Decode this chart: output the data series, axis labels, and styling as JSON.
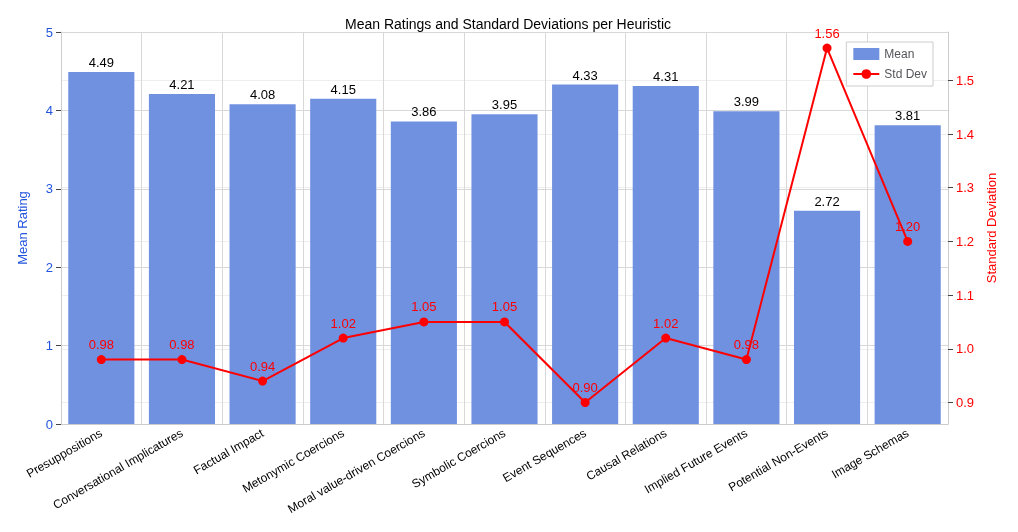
{
  "chart_data": {
    "type": "bar",
    "title": "Mean Ratings and Standard Deviations per Heuristic",
    "ylabel": "Mean Rating",
    "y2label": "Standard Deviation",
    "categories": [
      "Presuppositions",
      "Conversational Implicatures",
      "Factual Impact",
      "Metonymic Coercions",
      "Moral value-driven Coercions",
      "Symbolic Coercions",
      "Event Sequences",
      "Causal Relations",
      "Implied Future Events",
      "Potential Non-Events",
      "Image Schemas"
    ],
    "series": [
      {
        "name": "Mean",
        "color": "#7090e0",
        "values": [
          4.49,
          4.21,
          4.08,
          4.15,
          3.86,
          3.95,
          4.33,
          4.31,
          3.99,
          2.72,
          3.81
        ],
        "value_labels": [
          "4.49",
          "4.21",
          "4.08",
          "4.15",
          "3.86",
          "3.95",
          "4.33",
          "4.31",
          "3.99",
          "2.72",
          "3.81"
        ]
      },
      {
        "name": "Std Dev",
        "type": "line",
        "axis": "y2",
        "color": "#ff0000",
        "marker": "circle",
        "values": [
          0.98,
          0.98,
          0.94,
          1.02,
          1.05,
          1.05,
          0.9,
          1.02,
          0.98,
          1.56,
          1.2
        ],
        "value_labels": [
          "0.98",
          "0.98",
          "0.94",
          "1.02",
          "1.05",
          "1.05",
          "0.90",
          "1.02",
          "0.98",
          "1.56",
          "1.20"
        ]
      }
    ],
    "ylim": [
      0,
      5
    ],
    "yticks": [
      0,
      1,
      2,
      3,
      4,
      5
    ],
    "y2lim": [
      0.86,
      1.59
    ],
    "y2ticks": [
      0.9,
      {
        "value": 1,
        "label": "1.0"
      },
      1.1,
      1.2,
      1.3,
      1.4,
      1.5
    ],
    "grid": true,
    "legend": "top right"
  }
}
